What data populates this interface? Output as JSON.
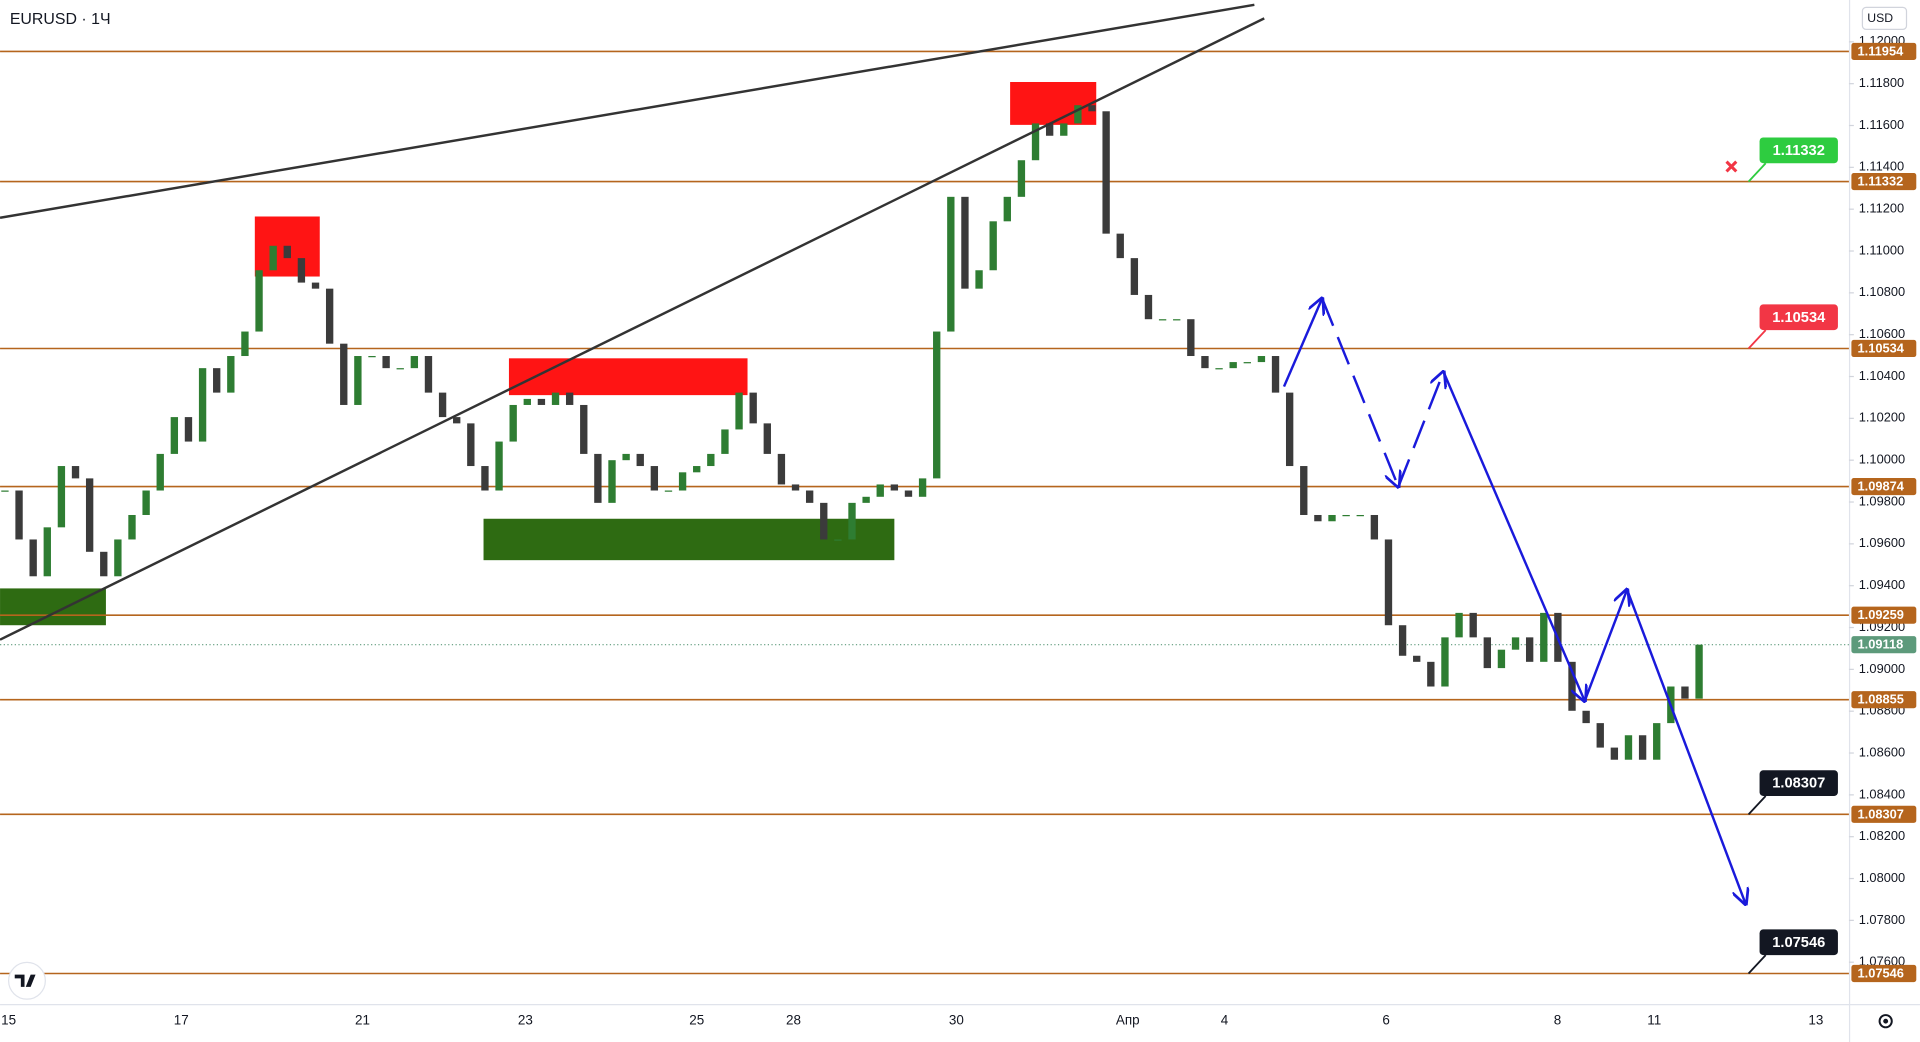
{
  "chart_data": {
    "type": "candlestick",
    "title": "EURUSD · 1Ч",
    "currency": "USD",
    "up_color": "#2e7d32",
    "down_color": "#3b3b3b",
    "ylim": [
      1.074,
      1.122
    ],
    "yticks": [
      {
        "value": 1.076,
        "label": "1.07600"
      },
      {
        "value": 1.078,
        "label": "1.07800"
      },
      {
        "value": 1.08,
        "label": "1.08000"
      },
      {
        "value": 1.082,
        "label": "1.08200"
      },
      {
        "value": 1.084,
        "label": "1.08400"
      },
      {
        "value": 1.086,
        "label": "1.08600"
      },
      {
        "value": 1.088,
        "label": "1.08800"
      },
      {
        "value": 1.09,
        "label": "1.09000"
      },
      {
        "value": 1.092,
        "label": "1.09200"
      },
      {
        "value": 1.094,
        "label": "1.09400"
      },
      {
        "value": 1.096,
        "label": "1.09600"
      },
      {
        "value": 1.098,
        "label": "1.09800"
      },
      {
        "value": 1.1,
        "label": "1.10000"
      },
      {
        "value": 1.102,
        "label": "1.10200"
      },
      {
        "value": 1.104,
        "label": "1.10400"
      },
      {
        "value": 1.106,
        "label": "1.10600"
      },
      {
        "value": 1.108,
        "label": "1.10800"
      },
      {
        "value": 1.11,
        "label": "1.11000"
      },
      {
        "value": 1.112,
        "label": "1.11200"
      },
      {
        "value": 1.114,
        "label": "1.11400"
      },
      {
        "value": 1.116,
        "label": "1.11600"
      },
      {
        "value": 1.118,
        "label": "1.11800"
      },
      {
        "value": 1.12,
        "label": "1.12000"
      }
    ],
    "categories": [
      "15",
      "17",
      "21",
      "23",
      "25",
      "28",
      "30",
      "Апр",
      "4",
      "6",
      "8",
      "11",
      "13"
    ],
    "close": [
      1.09855,
      1.09621,
      1.09445,
      1.09679,
      1.09972,
      1.09913,
      1.09562,
      1.09445,
      1.09621,
      1.09738,
      1.09855,
      1.1003,
      1.10206,
      1.10089,
      1.1044,
      1.10323,
      1.10498,
      1.10615,
      1.10908,
      1.11025,
      1.10966,
      1.10849,
      1.1082,
      1.10557,
      1.10264,
      1.10498,
      1.10498,
      1.1044,
      1.1044,
      1.10498,
      1.10323,
      1.10206,
      1.10176,
      1.09972,
      1.09855,
      1.10089,
      1.10264,
      1.10293,
      1.10264,
      1.10323,
      1.10264,
      1.1003,
      1.09796,
      1.1,
      1.1003,
      1.09972,
      1.09855,
      1.09855,
      1.09942,
      1.09972,
      1.1003,
      1.10147,
      1.10323,
      1.10176,
      1.1003,
      1.09884,
      1.09855,
      1.09796,
      1.09621,
      1.09621,
      1.09796,
      1.09825,
      1.09884,
      1.09855,
      1.09825,
      1.09913,
      1.10615,
      1.11259,
      1.1082,
      1.10908,
      1.11142,
      1.11259,
      1.11434,
      1.1161,
      1.11551,
      1.1161,
      1.11697,
      1.11668,
      1.11083,
      1.10966,
      1.1079,
      1.10674,
      1.10674,
      1.10674,
      1.10498,
      1.1044,
      1.1044,
      1.10469,
      1.10469,
      1.10498,
      1.10323,
      1.09972,
      1.09738,
      1.09708,
      1.09738,
      1.09738,
      1.09738,
      1.09621,
      1.09211,
      1.09065,
      1.09036,
      1.08918,
      1.09153,
      1.0927,
      1.09153,
      1.09006,
      1.09094,
      1.09153,
      1.09036,
      1.0927,
      1.09036,
      1.08802,
      1.08743,
      1.08626,
      1.08568,
      1.08685,
      1.08568,
      1.08743,
      1.08918,
      1.0886,
      1.09118
    ],
    "level_color": "#b5651d",
    "levels": [
      1.11954,
      1.11332,
      1.10534,
      1.09874,
      1.09259,
      1.08855,
      1.08307,
      1.07546
    ],
    "last_price": {
      "value": 1.09118,
      "color": "#5d9a7b"
    },
    "callouts": [
      {
        "value": 1.11332,
        "color": "#2ecc40"
      },
      {
        "value": 1.10534,
        "color": "#f23645"
      },
      {
        "value": 1.08307,
        "color": "#131722"
      },
      {
        "value": 1.07546,
        "color": "#131722"
      }
    ],
    "zones": [
      {
        "color": "#2e6b12",
        "x": [
          0,
          7.5
        ],
        "y": [
          1.09387,
          1.09211
        ]
      },
      {
        "color": "#ff1414",
        "x": [
          17.7,
          22.3
        ],
        "y": [
          1.11165,
          1.10878
        ]
      },
      {
        "color": "#ff1414",
        "x": [
          35.7,
          52.6
        ],
        "y": [
          1.10487,
          1.10311
        ]
      },
      {
        "color": "#2e6b12",
        "x": [
          33.9,
          63
        ],
        "y": [
          1.0972,
          1.09522
        ]
      },
      {
        "color": "#ff1414",
        "x": [
          71.2,
          77.3
        ],
        "y": [
          1.11808,
          1.11603
        ]
      }
    ],
    "trend_lines": [
      {
        "color": "#333333",
        "x": [
          0,
          88.5
        ],
        "y": [
          1.11159,
          1.12177
        ]
      },
      {
        "color": "#333333",
        "x": [
          0,
          89.2
        ],
        "y": [
          1.09142,
          1.12112
        ]
      }
    ],
    "arrows": {
      "color": "#1a1adb",
      "x": [
        90.6,
        93.3,
        98.7,
        101.9,
        111.9,
        114.9,
        123.3
      ],
      "y": [
        1.10352,
        1.10773,
        1.09873,
        1.10422,
        1.08849,
        1.09381,
        1.07878
      ]
    }
  }
}
